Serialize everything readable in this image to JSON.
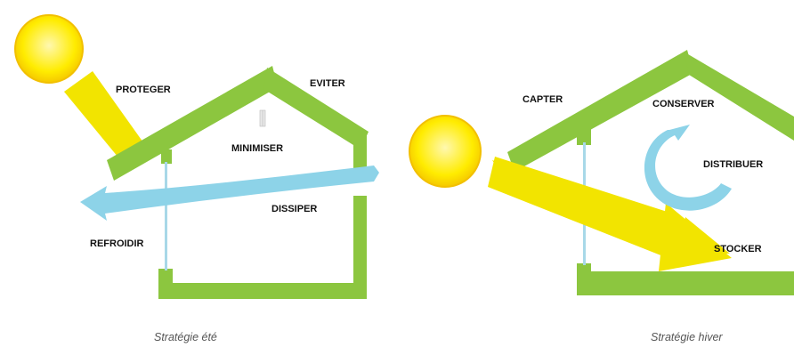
{
  "colors": {
    "wall": "#8CC63F",
    "sun": "#FFE600",
    "sun_edge": "#F2C200",
    "ray": "#F2E200",
    "air": "#8DD3E8",
    "pillar": "#A8D8E8"
  },
  "summer": {
    "labels": {
      "proteger": "PROTEGER",
      "eviter": "EVITER",
      "minimiser": "MINIMISER",
      "dissiper": "DISSIPER",
      "refroidir": "REFROIDIR"
    },
    "caption": "Stratégie été"
  },
  "winter": {
    "labels": {
      "capter": "CAPTER",
      "conserver": "CONSERVER",
      "distribuer": "DISTRIBUER",
      "stocker": "STOCKER"
    },
    "caption": "Stratégie hiver"
  }
}
